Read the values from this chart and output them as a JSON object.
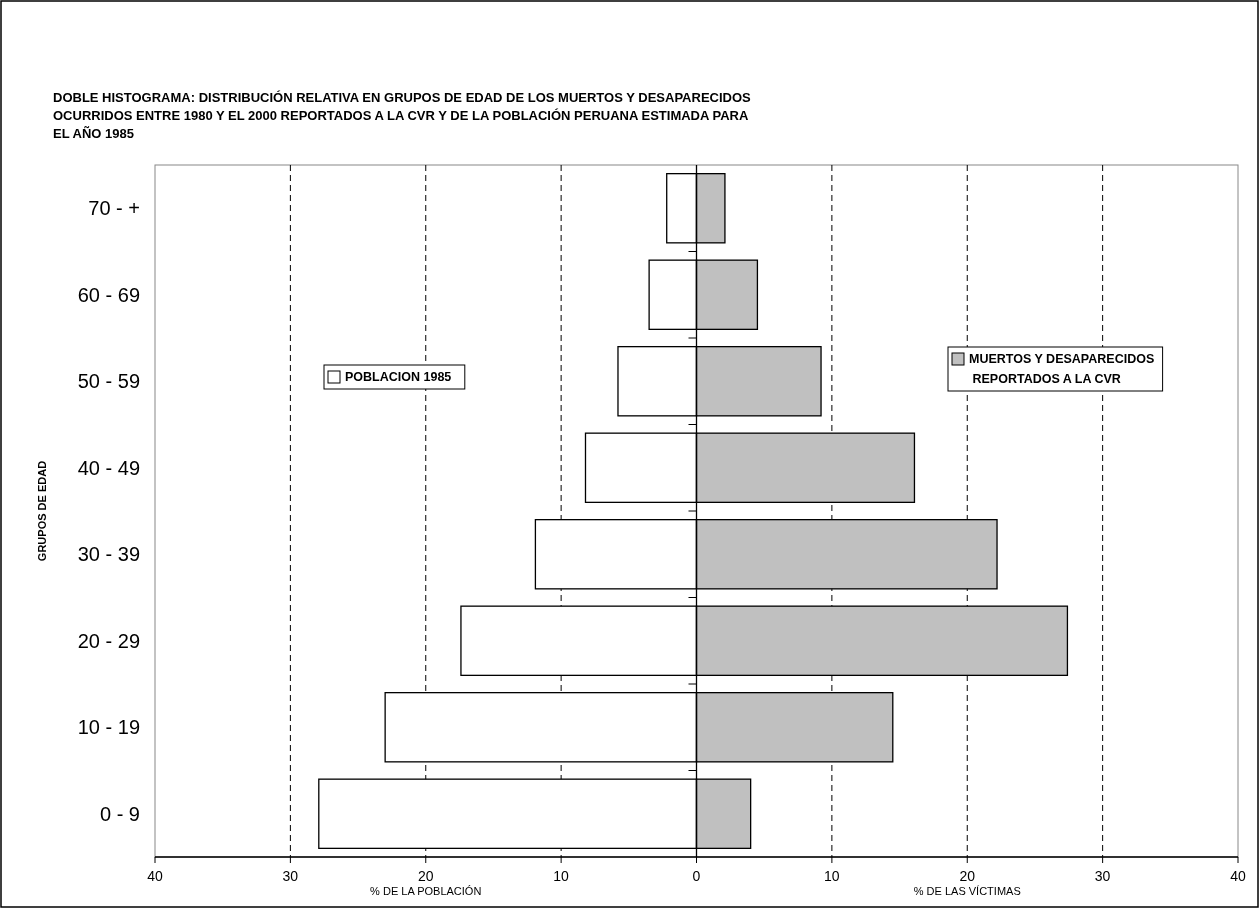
{
  "chart_data": {
    "type": "bar",
    "orientation": "horizontal",
    "stacked": true,
    "title": "DOBLE HISTOGRAMA: DISTRIBUCIÓN RELATIVA EN GRUPOS DE EDAD DE LOS MUERTOS Y DESAPARECIDOS OCURRIDOS ENTRE 1980 Y EL 2000 REPORTADOS A LA CVR Y DE LA POBLACIÓN PERUANA ESTIMADA PARA EL AÑO 1985",
    "ylabel": "GRUPOS DE EDAD",
    "xlabel": "% DE LA POBLACIÓN",
    "annotations": [
      "% DE LAS VÍCTIMAS"
    ],
    "categories": [
      "70 - +",
      "60 - 69",
      "50 - 59",
      "40 - 49",
      "30 - 39",
      "20 - 29",
      "10 - 19",
      "0 - 9"
    ],
    "series": [
      {
        "name": "POBLACION 1985",
        "color": "#ffffff",
        "values": [
          -2.2,
          -3.5,
          -5.8,
          -8.2,
          -11.9,
          -17.4,
          -23.0,
          -27.9
        ]
      },
      {
        "name": "MUERTOS Y DESAPARECIDOS\n REPORTADOS A LA CVR",
        "color": "#c0c0c0",
        "values": [
          2.1,
          4.5,
          9.2,
          16.1,
          22.2,
          27.4,
          14.5,
          4.0
        ]
      }
    ],
    "xlim": [
      -40,
      40
    ],
    "xticks": [
      {
        "value": -40,
        "label": "40"
      },
      {
        "value": -30,
        "label": "30"
      },
      {
        "value": -20,
        "label": "20"
      },
      {
        "value": -10,
        "label": "10"
      },
      0,
      10,
      20,
      30,
      40
    ],
    "grid": "x",
    "legend": "right"
  }
}
